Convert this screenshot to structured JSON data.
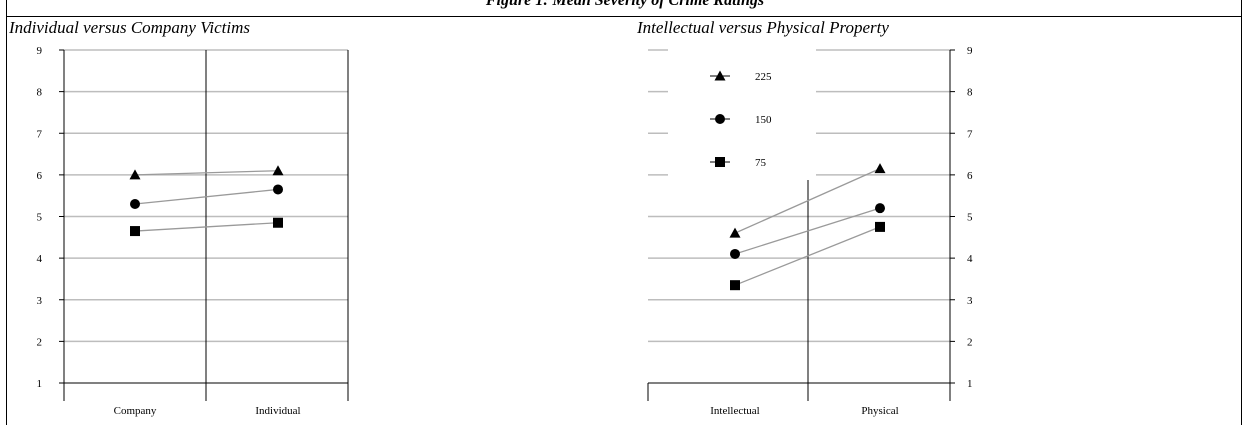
{
  "figure": {
    "title": "Figure 1: Mean Severity of Crime Ratings"
  },
  "colors": {
    "gridline": "#bdbdbd",
    "axis": "#000000",
    "connector": "#9a9a9a",
    "marker": "#000000"
  },
  "chart_data": [
    {
      "type": "line",
      "title": "Individual versus Company Victims",
      "xlabel": "",
      "ylabel": "",
      "categories": [
        "Company",
        "Individual"
      ],
      "ylim": [
        1,
        9
      ],
      "yticks": [
        "1",
        "2",
        "3",
        "4",
        "5",
        "6",
        "7",
        "8",
        "9"
      ],
      "y_axis_side": "left",
      "grid": true,
      "legend": null,
      "series": [
        {
          "marker": "triangle",
          "values": [
            6.0,
            6.1
          ]
        },
        {
          "marker": "circle",
          "values": [
            5.3,
            5.65
          ]
        },
        {
          "marker": "square",
          "values": [
            4.65,
            4.85
          ]
        }
      ]
    },
    {
      "type": "line",
      "title": "Intellectual versus Physical Property",
      "xlabel": "",
      "ylabel": "",
      "categories": [
        "Intellectual",
        "Physical"
      ],
      "ylim": [
        1,
        9
      ],
      "yticks": [
        "1",
        "2",
        "3",
        "4",
        "5",
        "6",
        "7",
        "8",
        "9"
      ],
      "y_axis_side": "right",
      "grid": true,
      "legend": {
        "placement": "top-left",
        "entries": [
          {
            "name": "225",
            "marker": "triangle"
          },
          {
            "name": "150",
            "marker": "circle"
          },
          {
            "name": "75",
            "marker": "square"
          }
        ]
      },
      "series": [
        {
          "name": "225",
          "marker": "triangle",
          "values": [
            4.6,
            6.15
          ]
        },
        {
          "name": "150",
          "marker": "circle",
          "values": [
            4.1,
            5.2
          ]
        },
        {
          "name": "75",
          "marker": "square",
          "values": [
            3.35,
            4.75
          ]
        }
      ]
    }
  ]
}
